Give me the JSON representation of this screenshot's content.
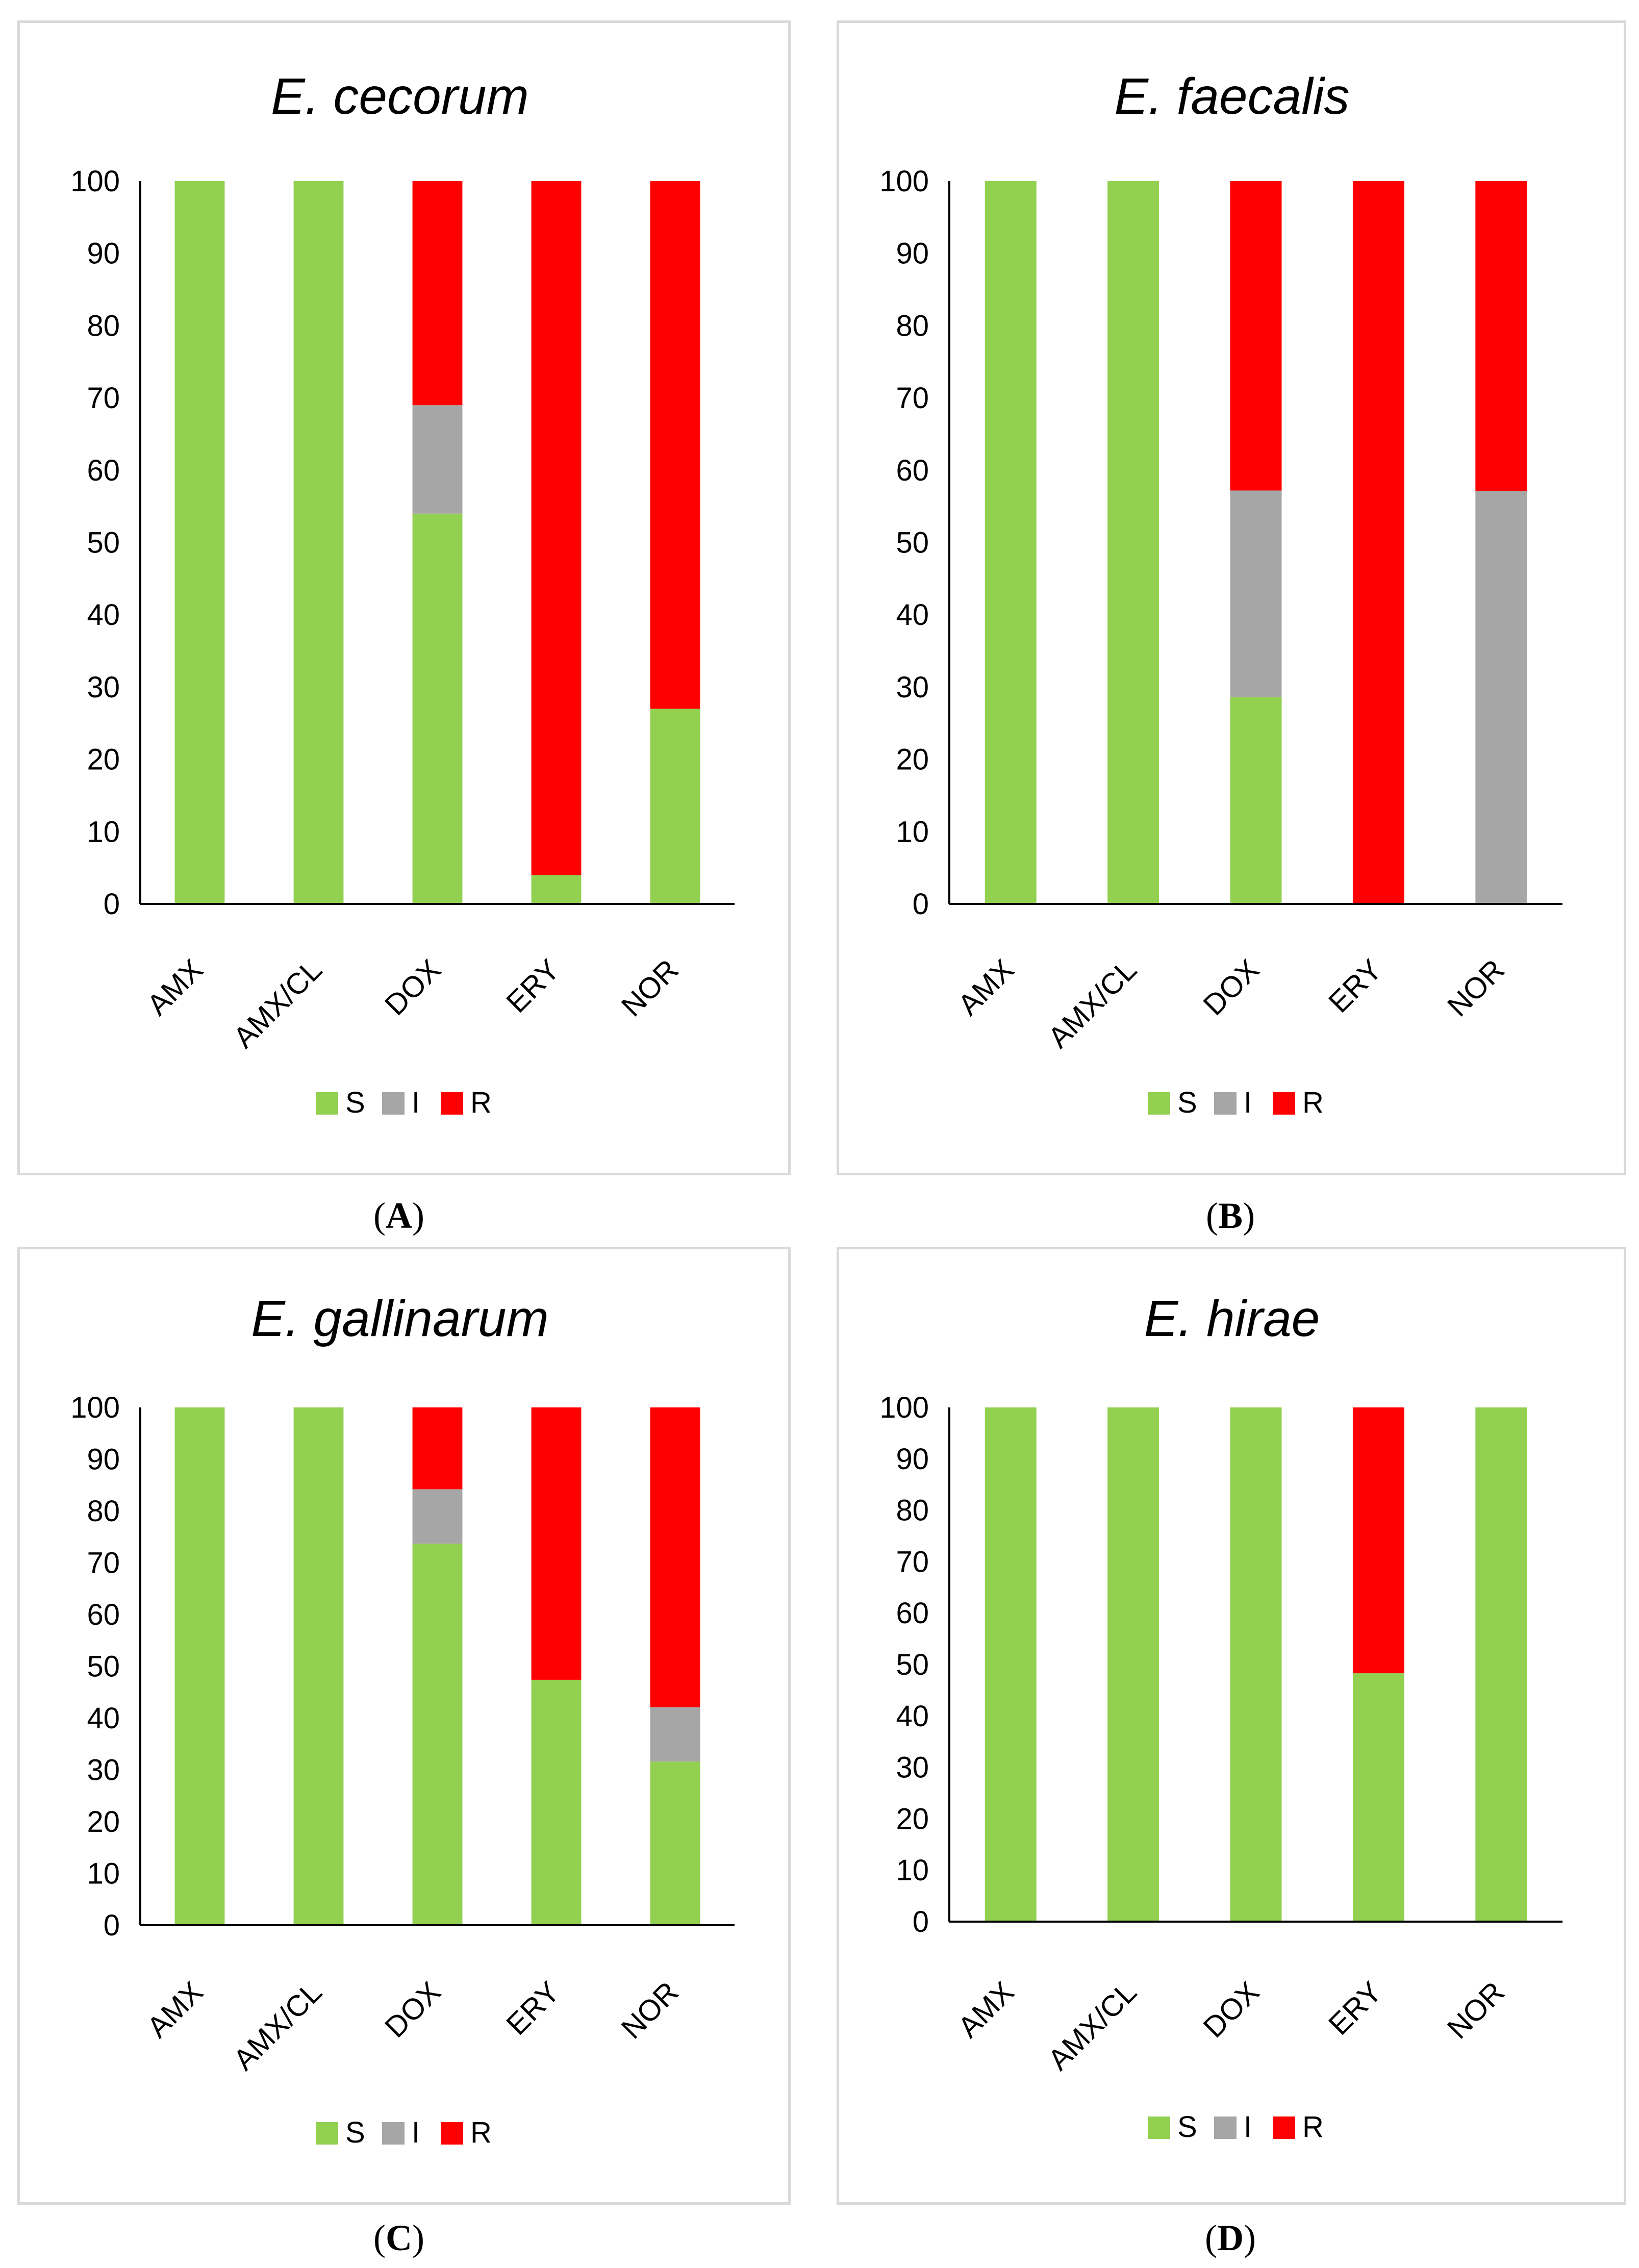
{
  "colors": {
    "S": "#92d050",
    "I": "#a6a6a6",
    "R": "#ff0000",
    "axis": "#000000",
    "border": "#d9d9d9"
  },
  "chart_data": [
    {
      "type": "bar",
      "stacked": true,
      "title": "E. cecorum",
      "caption": "A",
      "categories": [
        "AMX",
        "AMX/CL",
        "DOX",
        "ERY",
        "NOR"
      ],
      "series": [
        {
          "name": "S",
          "values": [
            100,
            100,
            54,
            4,
            27
          ]
        },
        {
          "name": "I",
          "values": [
            0,
            0,
            15,
            0,
            0
          ]
        },
        {
          "name": "R",
          "values": [
            0,
            0,
            31,
            96,
            73
          ]
        }
      ],
      "y_ticks": [
        "0",
        "10",
        "20",
        "30",
        "40",
        "50",
        "60",
        "70",
        "80",
        "90",
        "100"
      ],
      "ylim": [
        0,
        100
      ],
      "legend": [
        "S",
        "I",
        "R"
      ],
      "legend_position": "bottom"
    },
    {
      "type": "bar",
      "stacked": true,
      "title": "E. faecalis",
      "caption": "B",
      "categories": [
        "AMX",
        "AMX/CL",
        "DOX",
        "ERY",
        "NOR"
      ],
      "series": [
        {
          "name": "S",
          "values": [
            100,
            100,
            28.6,
            0,
            0
          ]
        },
        {
          "name": "I",
          "values": [
            0,
            0,
            28.6,
            0,
            57.1
          ]
        },
        {
          "name": "R",
          "values": [
            0,
            0,
            42.8,
            100,
            42.9
          ]
        }
      ],
      "y_ticks": [
        "0",
        "10",
        "20",
        "30",
        "40",
        "50",
        "60",
        "70",
        "80",
        "90",
        "100"
      ],
      "ylim": [
        0,
        100
      ],
      "legend": [
        "S",
        "I",
        "R"
      ],
      "legend_position": "bottom"
    },
    {
      "type": "bar",
      "stacked": true,
      "title": "E. gallinarum",
      "caption": "C",
      "categories": [
        "AMX",
        "AMX/CL",
        "DOX",
        "ERY",
        "NOR"
      ],
      "series": [
        {
          "name": "S",
          "values": [
            100,
            100,
            73.7,
            47.4,
            31.6
          ]
        },
        {
          "name": "I",
          "values": [
            0,
            0,
            10.5,
            0,
            10.5
          ]
        },
        {
          "name": "R",
          "values": [
            0,
            0,
            15.8,
            52.6,
            57.9
          ]
        }
      ],
      "y_ticks": [
        "0",
        "10",
        "20",
        "30",
        "40",
        "50",
        "60",
        "70",
        "80",
        "90",
        "100"
      ],
      "ylim": [
        0,
        100
      ],
      "legend": [
        "S",
        "I",
        "R"
      ],
      "legend_position": "bottom"
    },
    {
      "type": "bar",
      "stacked": true,
      "title": "E. hirae",
      "caption": "D",
      "categories": [
        "AMX",
        "AMX/CL",
        "DOX",
        "ERY",
        "NOR"
      ],
      "series": [
        {
          "name": "S",
          "values": [
            100,
            100,
            100,
            48.3,
            100
          ]
        },
        {
          "name": "I",
          "values": [
            0,
            0,
            0,
            0,
            0
          ]
        },
        {
          "name": "R",
          "values": [
            0,
            0,
            0,
            51.7,
            0
          ]
        }
      ],
      "y_ticks": [
        "0",
        "10",
        "20",
        "30",
        "40",
        "50",
        "60",
        "70",
        "80",
        "90",
        "100"
      ],
      "ylim": [
        0,
        100
      ],
      "legend": [
        "S",
        "I",
        "R"
      ],
      "legend_position": "bottom"
    }
  ]
}
